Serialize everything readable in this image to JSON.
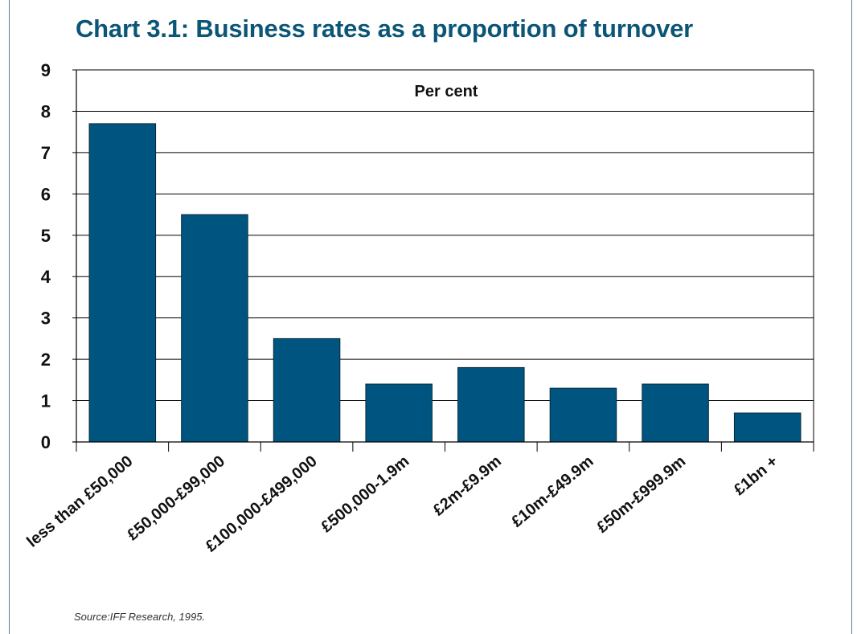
{
  "colors": {
    "bar_fill": "#005580",
    "title": "#0b5577",
    "frame": "#5a7f8f",
    "gridline": "#000000"
  },
  "chart_data": {
    "type": "bar",
    "title": "Chart 3.1: Business rates as a proportion of turnover",
    "unit_label": "Per cent",
    "xlabel": "",
    "ylabel": "",
    "ylim": [
      0,
      9
    ],
    "yticks": [
      "0",
      "1",
      "2",
      "3",
      "4",
      "5",
      "6",
      "7",
      "8",
      "9"
    ],
    "grid": true,
    "categories": [
      "less than £50,000",
      "£50,000-£99,000",
      "£100,000-£499,000",
      "£500,000-1.9m",
      "£2m-£9.9m",
      "£10m-£49.9m",
      "£50m-£999.9m",
      "£1bn +"
    ],
    "values": [
      7.7,
      5.5,
      2.5,
      1.4,
      1.8,
      1.3,
      1.4,
      0.7
    ]
  },
  "source": "Source:IFF Research, 1995."
}
